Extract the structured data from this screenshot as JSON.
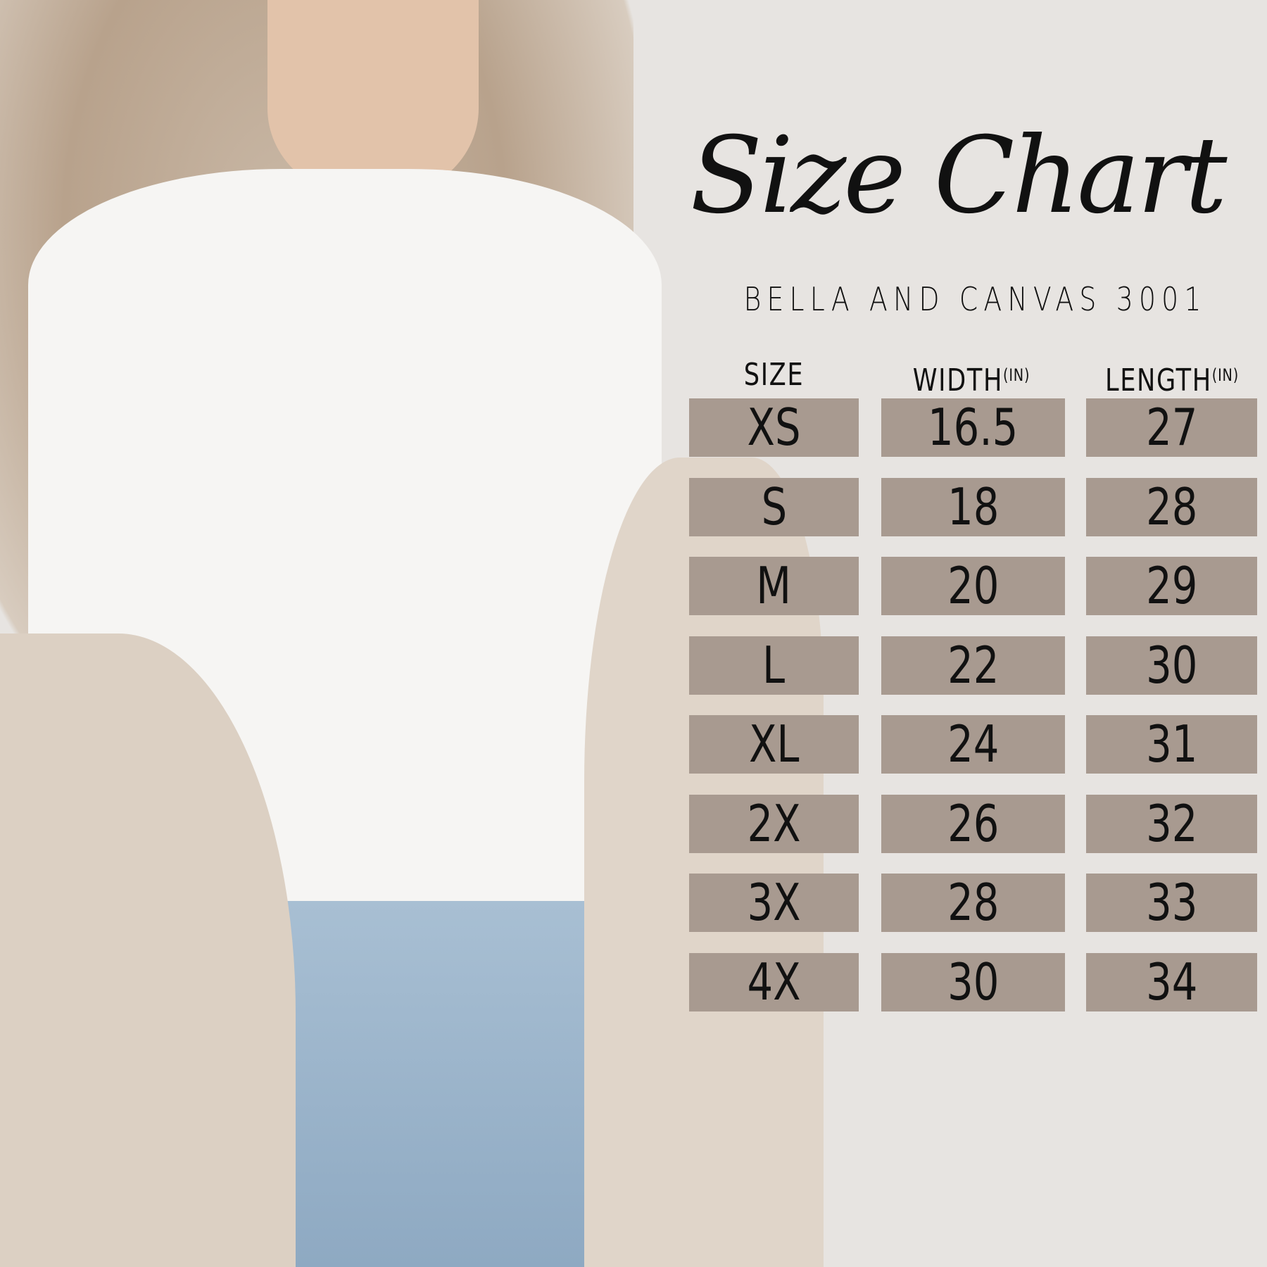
{
  "title": "Size Chart",
  "subtitle": "BELLA AND CANVAS 3001",
  "colors": {
    "background": "#e7e4e1",
    "cell": "#a89a90",
    "text": "#111111"
  },
  "chart_data": {
    "type": "table",
    "columns": [
      {
        "label": "SIZE",
        "unit": ""
      },
      {
        "label": "WIDTH",
        "unit": "(IN)"
      },
      {
        "label": "LENGTH",
        "unit": "(IN)"
      }
    ],
    "rows": [
      [
        "XS",
        "16.5",
        "27"
      ],
      [
        "S",
        "18",
        "28"
      ],
      [
        "M",
        "20",
        "29"
      ],
      [
        "L",
        "22",
        "30"
      ],
      [
        "XL",
        "24",
        "31"
      ],
      [
        "2X",
        "26",
        "32"
      ],
      [
        "3X",
        "28",
        "33"
      ],
      [
        "4X",
        "30",
        "34"
      ]
    ]
  }
}
